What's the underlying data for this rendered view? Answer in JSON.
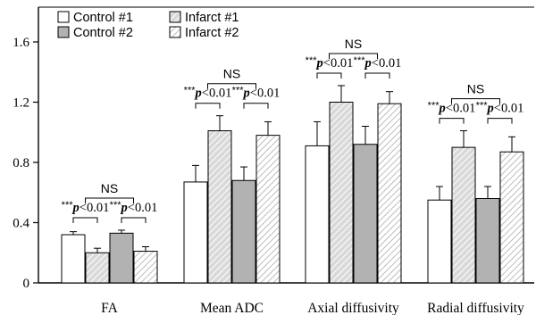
{
  "chart_data": {
    "type": "bar",
    "categories": [
      "FA",
      "Mean ADC",
      "Axial diffusivity",
      "Radial diffusivity"
    ],
    "series": [
      {
        "name": "Control #1",
        "values": [
          0.32,
          0.67,
          0.91,
          0.55
        ],
        "errors": [
          0.02,
          0.11,
          0.16,
          0.09
        ],
        "fill": "white"
      },
      {
        "name": "Infarct #1",
        "values": [
          0.2,
          1.01,
          1.2,
          0.9
        ],
        "errors": [
          0.03,
          0.1,
          0.11,
          0.11
        ],
        "fill": "hatch-dense"
      },
      {
        "name": "Control #2",
        "values": [
          0.33,
          0.68,
          0.92,
          0.56
        ],
        "errors": [
          0.02,
          0.09,
          0.12,
          0.08
        ],
        "fill": "gray"
      },
      {
        "name": "Infarct #2",
        "values": [
          0.21,
          0.98,
          1.19,
          0.87
        ],
        "errors": [
          0.03,
          0.09,
          0.08,
          0.1
        ],
        "fill": "hatch-light"
      }
    ],
    "yticks": [
      "0",
      "0.4",
      "0.8",
      "1.2",
      "1.6"
    ],
    "ylim": [
      0,
      1.8
    ],
    "legend_position": "top-left",
    "annotations": {
      "significance_stars": "***",
      "significance_p": "p",
      "significance_value": "<0.01",
      "ns": "NS"
    }
  },
  "colors": {
    "control2_fill": "#b2b2b2",
    "hatch_dense_fill": "#d9d9d9",
    "hatch_light_fill": "#ebebeb",
    "stroke": "#000000"
  }
}
